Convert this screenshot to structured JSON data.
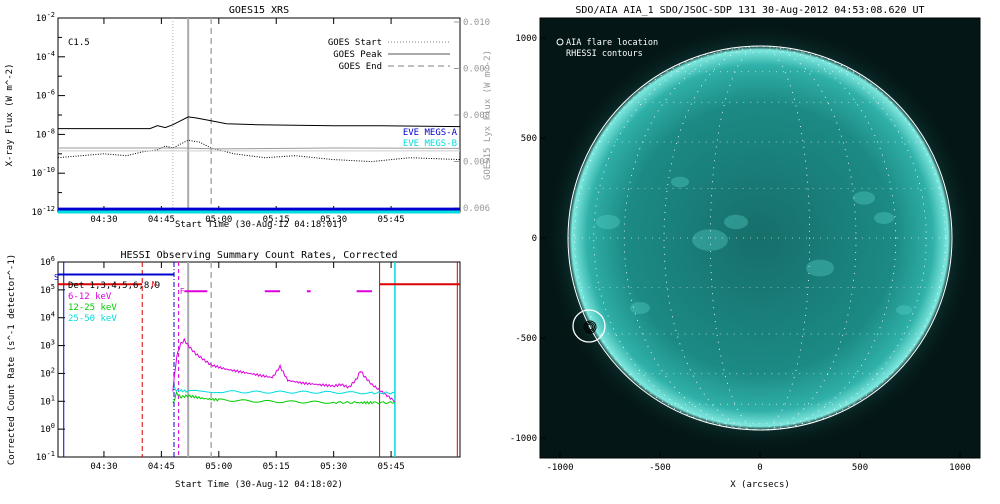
{
  "chart_data": [
    {
      "type": "line",
      "title": "GOES15 XRS",
      "xlabel": "Start Time (30-Aug-12 04:18:01)",
      "ylabel": "X-ray Flux (W m^-2)",
      "y2label": "GOES15 Lyx Flux (W m^-2)",
      "xlim": [
        18,
        123
      ],
      "x_ticks": [
        {
          "v": 30,
          "label": "04:30"
        },
        {
          "v": 45,
          "label": "04:45"
        },
        {
          "v": 60,
          "label": "05:00"
        },
        {
          "v": 75,
          "label": "05:15"
        },
        {
          "v": 90,
          "label": "05:30"
        },
        {
          "v": 105,
          "label": "05:45"
        }
      ],
      "ylim_log": [
        -12,
        -2
      ],
      "y_ticks": [
        {
          "e": -2,
          "label": "10^-2"
        },
        {
          "e": -4,
          "label": "10^-4"
        },
        {
          "e": -6,
          "label": "10^-6"
        },
        {
          "e": -8,
          "label": "10^-8"
        },
        {
          "e": -10,
          "label": "10^-10"
        },
        {
          "e": -12,
          "label": "10^-12"
        }
      ],
      "y2lim": [
        0.006,
        0.01
      ],
      "y2_ticks": [
        "0.010",
        "0.009",
        "0.008",
        "0.007",
        "0.006"
      ],
      "class_label": "C1.5",
      "legend": [
        {
          "label": "GOES Start",
          "style": "dotted",
          "color": "#aaaaaa"
        },
        {
          "label": "GOES Peak",
          "style": "solid",
          "color": "#aaaaaa"
        },
        {
          "label": "GOES End",
          "style": "dashed",
          "color": "#aaaaaa"
        }
      ],
      "eve_labels": [
        {
          "label": "EVE MEGS-A",
          "color": "#0000cc"
        },
        {
          "label": "EVE MEGS-B",
          "color": "#00dddd"
        }
      ],
      "event_lines": {
        "start": 48,
        "peak": 52,
        "end": 58
      },
      "series": [
        {
          "color": "#000000",
          "style": "solid",
          "points": [
            [
              18,
              -7.7
            ],
            [
              30,
              -7.7
            ],
            [
              42,
              -7.7
            ],
            [
              44,
              -7.55
            ],
            [
              46,
              -7.65
            ],
            [
              48,
              -7.5
            ],
            [
              50,
              -7.3
            ],
            [
              52,
              -7.1
            ],
            [
              54,
              -7.15
            ],
            [
              58,
              -7.3
            ],
            [
              62,
              -7.45
            ],
            [
              70,
              -7.5
            ],
            [
              90,
              -7.55
            ],
            [
              100,
              -7.55
            ],
            [
              123,
              -7.6
            ]
          ]
        },
        {
          "color": "#000000",
          "style": "dotted",
          "points": [
            [
              18,
              -9.2
            ],
            [
              24,
              -9.1
            ],
            [
              30,
              -9.0
            ],
            [
              36,
              -9.1
            ],
            [
              40,
              -8.9
            ],
            [
              44,
              -8.8
            ],
            [
              46,
              -8.6
            ],
            [
              48,
              -8.7
            ],
            [
              50,
              -8.5
            ],
            [
              52,
              -8.3
            ],
            [
              55,
              -8.4
            ],
            [
              58,
              -8.7
            ],
            [
              64,
              -9.0
            ],
            [
              72,
              -9.2
            ],
            [
              80,
              -9.1
            ],
            [
              90,
              -9.3
            ],
            [
              100,
              -9.4
            ],
            [
              110,
              -9.2
            ],
            [
              123,
              -9.3
            ]
          ]
        },
        {
          "color": "#999999",
          "style": "solid",
          "points": [
            [
              18,
              -8.7
            ],
            [
              50,
              -8.7
            ],
            [
              60,
              -8.75
            ],
            [
              90,
              -8.7
            ],
            [
              123,
              -8.72
            ]
          ]
        },
        {
          "color": "#cccccc",
          "style": "solid",
          "points": [
            [
              18,
              -8.85
            ],
            [
              123,
              -8.85
            ]
          ]
        },
        {
          "color": "#0000cc",
          "style": "thick",
          "points": [
            [
              18,
              -11.85
            ],
            [
              123,
              -11.85
            ]
          ]
        },
        {
          "color": "#00dddd",
          "style": "thick",
          "points": [
            [
              18,
              -12.0
            ],
            [
              123,
              -12.0
            ]
          ]
        }
      ]
    },
    {
      "type": "line",
      "title": "HESSI Observing Summary Count Rates, Corrected",
      "xlabel": "Start Time (30-Aug-12 04:18:02)",
      "ylabel": "Corrected Count Rate (s^-1 detector^-1)",
      "xlim": [
        18,
        123
      ],
      "x_ticks": [
        {
          "v": 30,
          "label": "04:30"
        },
        {
          "v": 45,
          "label": "04:45"
        },
        {
          "v": 60,
          "label": "05:00"
        },
        {
          "v": 75,
          "label": "05:15"
        },
        {
          "v": 90,
          "label": "05:30"
        },
        {
          "v": 105,
          "label": "05:45"
        }
      ],
      "ylim_log": [
        -1,
        6
      ],
      "y_ticks": [
        {
          "e": 6,
          "label": "10^6"
        },
        {
          "e": 5,
          "label": "10^5"
        },
        {
          "e": 4,
          "label": "10^4"
        },
        {
          "e": 3,
          "label": "10^3"
        },
        {
          "e": 2,
          "label": "10^2"
        },
        {
          "e": 1,
          "label": "10^1"
        },
        {
          "e": 0,
          "label": "10^0"
        },
        {
          "e": -1,
          "label": "10^-1"
        }
      ],
      "legend": [
        {
          "label": "Det 1,3,4,5,6,8,9",
          "color": "#000000"
        },
        {
          "label": "6-12 keV",
          "color": "#dd00dd"
        },
        {
          "label": "12-25 keV",
          "color": "#00cc00"
        },
        {
          "label": "25-50 keV",
          "color": "#00dddd"
        }
      ],
      "flags": [
        {
          "label": "S",
          "color": "#0000cc"
        },
        {
          "label": "N",
          "color": "#dd0000"
        },
        {
          "label": "F",
          "color": "#dd00dd"
        }
      ],
      "series": [
        {
          "name": "6-12 keV",
          "color": "#dd00dd",
          "points": [
            [
              48,
              1.4
            ],
            [
              49,
              2.6
            ],
            [
              50,
              3.05
            ],
            [
              51,
              3.2
            ],
            [
              52,
              3.0
            ],
            [
              54,
              2.7
            ],
            [
              56,
              2.5
            ],
            [
              58,
              2.3
            ],
            [
              62,
              2.15
            ],
            [
              66,
              2.05
            ],
            [
              70,
              1.95
            ],
            [
              74,
              1.85
            ],
            [
              76,
              2.25
            ],
            [
              78,
              1.75
            ],
            [
              82,
              1.65
            ],
            [
              86,
              1.6
            ],
            [
              90,
              1.55
            ],
            [
              92,
              1.6
            ],
            [
              94,
              1.5
            ],
            [
              96,
              1.8
            ],
            [
              97,
              2.1
            ],
            [
              98,
              1.9
            ],
            [
              100,
              1.6
            ],
            [
              103,
              1.3
            ],
            [
              106,
              1.0
            ]
          ]
        },
        {
          "name": "12-25 keV",
          "color": "#00cc00",
          "points": [
            [
              48,
              0.9
            ],
            [
              49,
              1.3
            ],
            [
              50,
              1.15
            ],
            [
              52,
              1.2
            ],
            [
              56,
              1.1
            ],
            [
              60,
              1.05
            ],
            [
              70,
              1.0
            ],
            [
              80,
              0.98
            ],
            [
              90,
              0.96
            ],
            [
              96,
              0.95
            ],
            [
              100,
              0.95
            ],
            [
              106,
              0.95
            ]
          ]
        },
        {
          "name": "25-50 keV",
          "color": "#00dddd",
          "points": [
            [
              48,
              1.5
            ],
            [
              49,
              1.4
            ],
            [
              52,
              1.35
            ],
            [
              60,
              1.35
            ],
            [
              70,
              1.33
            ],
            [
              80,
              1.33
            ],
            [
              90,
              1.32
            ],
            [
              100,
              1.3
            ],
            [
              106,
              1.3
            ]
          ]
        }
      ]
    },
    {
      "type": "scatter",
      "title": "SDO/AIA AIA_1 SDO/JSOC-SDP 131 30-Aug-2012 04:53:08.620 UT",
      "xlabel": "X (arcsecs)",
      "ylabel": "",
      "xlim": [
        -1100,
        1100
      ],
      "ylim": [
        -1100,
        1100
      ],
      "x_ticks": [
        "-1000",
        "-500",
        "0",
        "500",
        "1000"
      ],
      "y_ticks": [
        "1000",
        "500",
        "0",
        "-500",
        "-1000"
      ],
      "legend": [
        {
          "label": "AIA flare location",
          "marker": "circle"
        },
        {
          "label": "RHESSI contours",
          "marker": "none"
        }
      ],
      "flare_location": {
        "x": -855,
        "y": -440
      }
    }
  ]
}
